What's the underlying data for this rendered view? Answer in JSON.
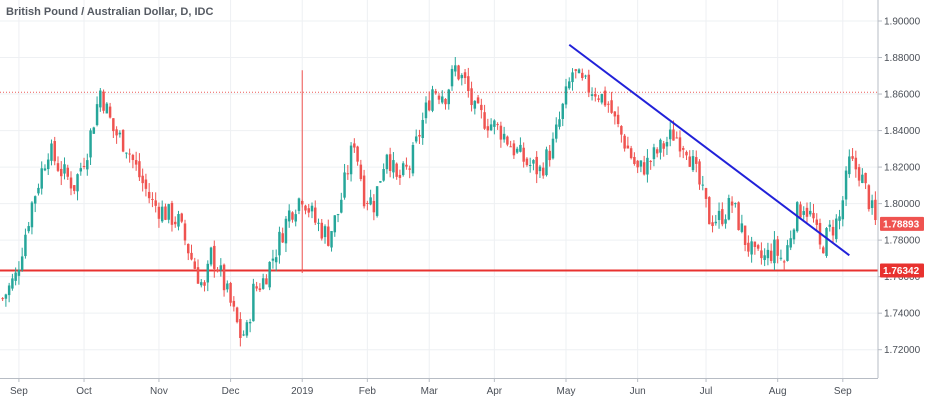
{
  "chart_data": {
    "type": "candlestick",
    "title": "British Pound / Australian Dollar, D, IDC",
    "y_axis": {
      "position": "right",
      "range": [
        1.7045,
        1.9115
      ],
      "ticks": [
        "1.90000",
        "1.88000",
        "1.86000",
        "1.84000",
        "1.82000",
        "1.80000",
        "1.78000",
        "1.76000",
        "1.74000",
        "1.72000"
      ],
      "tick_values": [
        1.9,
        1.88,
        1.86,
        1.84,
        1.82,
        1.8,
        1.78,
        1.76,
        1.74,
        1.72
      ]
    },
    "x_axis": {
      "labels": [
        "Sep",
        "Oct",
        "Nov",
        "Dec",
        "2019",
        "Feb",
        "Mar",
        "Apr",
        "May",
        "Jun",
        "Jul",
        "Aug",
        "Sep"
      ],
      "label_index": [
        5,
        25,
        48,
        70,
        92,
        112,
        131,
        151,
        173,
        195,
        216,
        238,
        258
      ]
    },
    "grid": true,
    "colors": {
      "up": "#26a69a",
      "down": "#ef5350",
      "trendline": "#2121d9",
      "support": "#e8322f",
      "resistance": "#e8322f",
      "grid": "#eef0f3"
    },
    "annotations": {
      "support_level": 1.7634,
      "resistance_level": 1.861,
      "trendline": {
        "start": {
          "index": 174,
          "price": 1.887
        },
        "end": {
          "index": 260,
          "price": 1.7717
        }
      },
      "vertical_marker": {
        "index": 92,
        "high": 1.873,
        "low": 1.762
      }
    },
    "price_badges": [
      {
        "label": "1.78893",
        "value": 1.7889,
        "color": "#ef5350"
      },
      {
        "label": "1.76342",
        "value": 1.7634,
        "color": "#e8322f"
      }
    ],
    "close_path": [
      [
        0,
        1.748
      ],
      [
        4,
        1.76
      ],
      [
        9,
        1.8
      ],
      [
        14,
        1.83
      ],
      [
        18,
        1.818
      ],
      [
        22,
        1.81
      ],
      [
        26,
        1.83
      ],
      [
        30,
        1.862
      ],
      [
        34,
        1.84
      ],
      [
        38,
        1.832
      ],
      [
        42,
        1.815
      ],
      [
        46,
        1.8
      ],
      [
        50,
        1.795
      ],
      [
        54,
        1.79
      ],
      [
        58,
        1.77
      ],
      [
        62,
        1.752
      ],
      [
        64,
        1.772
      ],
      [
        66,
        1.766
      ],
      [
        70,
        1.745
      ],
      [
        73,
        1.728
      ],
      [
        75,
        1.73
      ],
      [
        77,
        1.752
      ],
      [
        80,
        1.758
      ],
      [
        84,
        1.775
      ],
      [
        88,
        1.795
      ],
      [
        92,
        1.805
      ],
      [
        96,
        1.79
      ],
      [
        100,
        1.782
      ],
      [
        103,
        1.795
      ],
      [
        108,
        1.835
      ],
      [
        111,
        1.805
      ],
      [
        114,
        1.8
      ],
      [
        118,
        1.83
      ],
      [
        121,
        1.812
      ],
      [
        125,
        1.82
      ],
      [
        129,
        1.845
      ],
      [
        132,
        1.863
      ],
      [
        136,
        1.86
      ],
      [
        139,
        1.874
      ],
      [
        142,
        1.866
      ],
      [
        145,
        1.85
      ],
      [
        149,
        1.845
      ],
      [
        153,
        1.84
      ],
      [
        157,
        1.83
      ],
      [
        161,
        1.822
      ],
      [
        165,
        1.818
      ],
      [
        169,
        1.832
      ],
      [
        172,
        1.852
      ],
      [
        175,
        1.872
      ],
      [
        178,
        1.865
      ],
      [
        182,
        1.862
      ],
      [
        186,
        1.855
      ],
      [
        188,
        1.845
      ],
      [
        192,
        1.83
      ],
      [
        195,
        1.818
      ],
      [
        198,
        1.822
      ],
      [
        202,
        1.83
      ],
      [
        206,
        1.838
      ],
      [
        210,
        1.832
      ],
      [
        214,
        1.81
      ],
      [
        217,
        1.792
      ],
      [
        220,
        1.792
      ],
      [
        224,
        1.8
      ],
      [
        228,
        1.78
      ],
      [
        231,
        1.77
      ],
      [
        234,
        1.77
      ],
      [
        237,
        1.775
      ],
      [
        240,
        1.768
      ],
      [
        243,
        1.792
      ],
      [
        246,
        1.8
      ],
      [
        249,
        1.79
      ],
      [
        251,
        1.775
      ],
      [
        254,
        1.785
      ],
      [
        257,
        1.792
      ],
      [
        260,
        1.822
      ],
      [
        263,
        1.818
      ],
      [
        266,
        1.802
      ],
      [
        268,
        1.789
      ]
    ]
  }
}
